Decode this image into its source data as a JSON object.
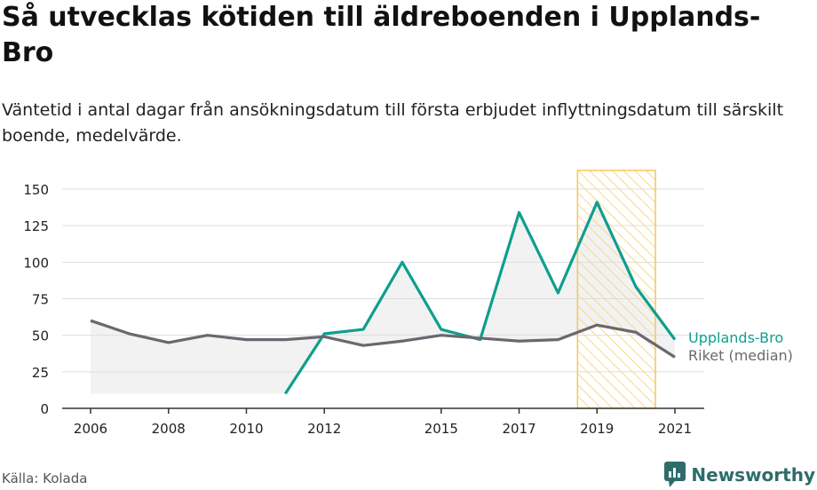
{
  "title": "Så utvecklas kötiden till äldreboenden i Upplands-Bro",
  "subtitle": "Väntetid i antal dagar från ansökningsdatum till första erbjudet inflyttningsdatum till särskilt boende, medelvärde.",
  "source": "Källa: Kolada",
  "brand": {
    "name": "Newsworthy",
    "icon": "newsworthy-logo-icon"
  },
  "colors": {
    "upplands": "#0f9e8f",
    "riket": "#6b6770",
    "highlight": "#f7c65a",
    "fill": "#f2f2f2"
  },
  "chart_data": {
    "type": "line",
    "x": [
      2006,
      2007,
      2008,
      2009,
      2010,
      2011,
      2012,
      2013,
      2014,
      2015,
      2016,
      2017,
      2018,
      2019,
      2020,
      2021
    ],
    "x_ticks": [
      "2006",
      "2008",
      "2010",
      "2012",
      "2015",
      "2017",
      "2019",
      "2021"
    ],
    "y_ticks": [
      "0",
      "25",
      "50",
      "75",
      "100",
      "125",
      "150"
    ],
    "ylim": [
      0,
      150
    ],
    "xlim": [
      2006,
      2021
    ],
    "grid": "horizontal",
    "highlight_range": [
      2018.5,
      2020.5
    ],
    "series": [
      {
        "name": "Upplands-Bro",
        "values": [
          null,
          null,
          null,
          null,
          null,
          10,
          51,
          54,
          100,
          54,
          47,
          134,
          79,
          141,
          83,
          47
        ]
      },
      {
        "name": "Riket (median)",
        "values": [
          60,
          51,
          45,
          50,
          47,
          47,
          49,
          43,
          46,
          50,
          48,
          46,
          47,
          57,
          52,
          35
        ]
      }
    ]
  }
}
